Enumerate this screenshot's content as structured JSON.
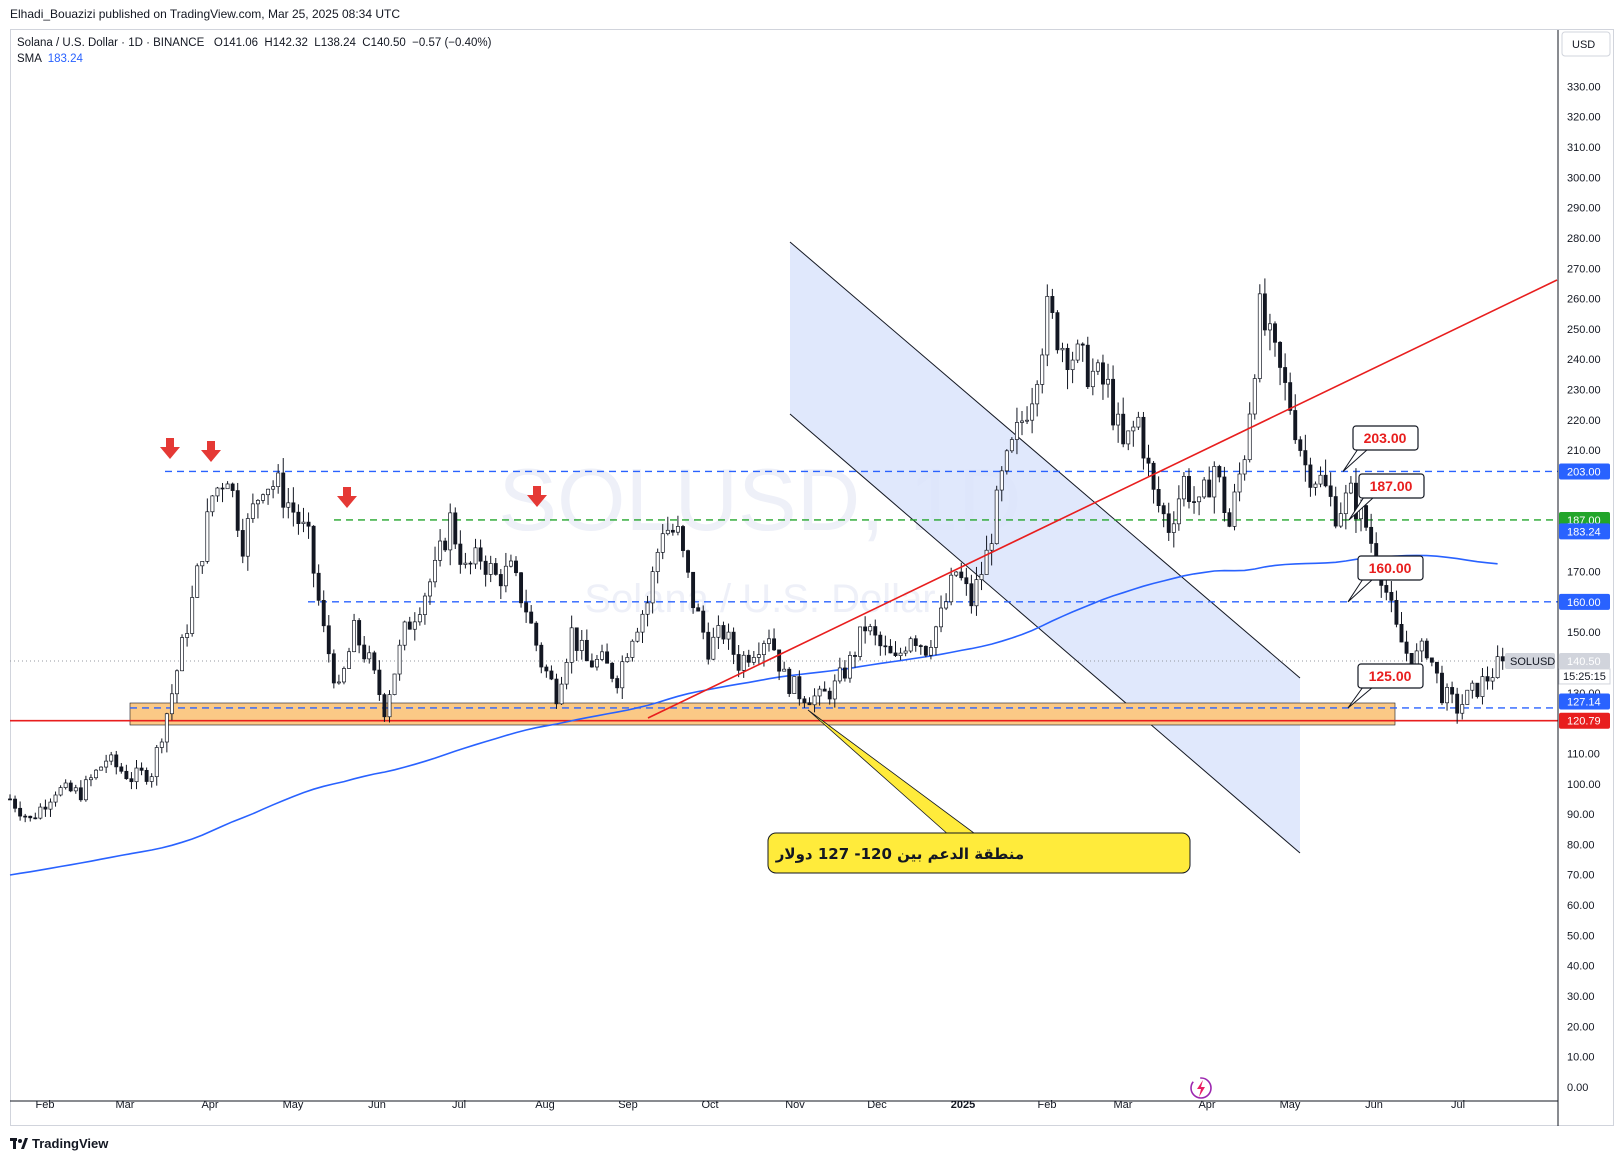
{
  "header": {
    "published": "Elhadi_Bouazizi published on TradingView.com, Mar 25, 2025 08:34 UTC"
  },
  "legend": {
    "symbol": "Solana / U.S. Dollar · 1D · BINANCE",
    "o_label": "O",
    "o": "141.06",
    "h_label": "H",
    "h": "142.32",
    "l_label": "L",
    "l": "138.24",
    "c_label": "C",
    "c": "140.50",
    "change": "−0.57 (−0.40%)",
    "sma_label": "SMA",
    "sma_value": "183.24"
  },
  "watermark": {
    "main": "SOLUSD, 1D",
    "sub": "Solana / U.S. Dollar"
  },
  "footer": {
    "brand": "TradingView"
  },
  "colors": {
    "up_candle": "#ffffff",
    "candle_border": "#131722",
    "sma": "#2962ff",
    "channel_fill": "#dbe4fb",
    "trendline": "#e81e1e",
    "support_zone": "#fbc986",
    "level_blue": "#2962ff",
    "level_green": "#22a52a",
    "callout_fill": "#ffeb3b",
    "arrow_red": "#e53935"
  },
  "chart_data": {
    "type": "candlestick",
    "symbol": "SOLUSD",
    "timeframe": "1D",
    "currency": "USD",
    "ylim": [
      0,
      340
    ],
    "y_ticks": [
      0,
      10,
      20,
      30,
      40,
      50,
      60,
      70,
      80,
      90,
      100,
      110,
      120,
      130,
      150,
      170,
      210,
      220,
      230,
      240,
      250,
      260,
      270,
      280,
      290,
      300,
      310,
      320,
      330
    ],
    "x_ticks": [
      "Feb",
      "Mar",
      "Apr",
      "May",
      "Jun",
      "Jul",
      "Aug",
      "Sep",
      "Oct",
      "Nov",
      "Dec",
      "2025",
      "Feb",
      "Mar",
      "Apr",
      "May",
      "Jun",
      "Jul"
    ],
    "price_path": [
      [
        0,
        95
      ],
      [
        4,
        88
      ],
      [
        9,
        98
      ],
      [
        14,
        97
      ],
      [
        19,
        108
      ],
      [
        24,
        102
      ],
      [
        28,
        104
      ],
      [
        32,
        130
      ],
      [
        36,
        160
      ],
      [
        40,
        195
      ],
      [
        43,
        203
      ],
      [
        46,
        180
      ],
      [
        50,
        200
      ],
      [
        53,
        198
      ],
      [
        56,
        190
      ],
      [
        59,
        180
      ],
      [
        62,
        150
      ],
      [
        65,
        130
      ],
      [
        68,
        150
      ],
      [
        71,
        140
      ],
      [
        74,
        125
      ],
      [
        78,
        150
      ],
      [
        81,
        160
      ],
      [
        84,
        170
      ],
      [
        87,
        187
      ],
      [
        90,
        170
      ],
      [
        93,
        175
      ],
      [
        96,
        168
      ],
      [
        99,
        170
      ],
      [
        102,
        158
      ],
      [
        105,
        140
      ],
      [
        108,
        130
      ],
      [
        111,
        150
      ],
      [
        114,
        140
      ],
      [
        117,
        140
      ],
      [
        120,
        135
      ],
      [
        123,
        150
      ],
      [
        126,
        160
      ],
      [
        129,
        185
      ],
      [
        132,
        182
      ],
      [
        135,
        160
      ],
      [
        138,
        145
      ],
      [
        141,
        150
      ],
      [
        144,
        140
      ],
      [
        147,
        145
      ],
      [
        150,
        150
      ],
      [
        153,
        135
      ],
      [
        156,
        130
      ],
      [
        160,
        128
      ],
      [
        163,
        132
      ],
      [
        166,
        140
      ],
      [
        169,
        152
      ],
      [
        172,
        145
      ],
      [
        175,
        140
      ],
      [
        178,
        150
      ],
      [
        181,
        145
      ],
      [
        184,
        155
      ],
      [
        187,
        170
      ],
      [
        190,
        160
      ],
      [
        193,
        175
      ],
      [
        196,
        200
      ],
      [
        199,
        215
      ],
      [
        202,
        230
      ],
      [
        205,
        255
      ],
      [
        208,
        245
      ],
      [
        211,
        240
      ],
      [
        214,
        235
      ],
      [
        217,
        230
      ],
      [
        220,
        210
      ],
      [
        223,
        220
      ],
      [
        226,
        195
      ],
      [
        229,
        185
      ],
      [
        232,
        200
      ],
      [
        235,
        190
      ],
      [
        238,
        205
      ],
      [
        241,
        185
      ],
      [
        244,
        210
      ],
      [
        247,
        255
      ],
      [
        250,
        240
      ],
      [
        253,
        225
      ],
      [
        256,
        205
      ],
      [
        259,
        200
      ],
      [
        262,
        190
      ],
      [
        265,
        195
      ],
      [
        268,
        185
      ],
      [
        271,
        170
      ],
      [
        274,
        150
      ],
      [
        277,
        140
      ],
      [
        280,
        145
      ],
      [
        283,
        130
      ],
      [
        286,
        125
      ],
      [
        289,
        130
      ],
      [
        292,
        135
      ],
      [
        295,
        140.5
      ]
    ],
    "sma": {
      "name": "SMA",
      "value": 183.24
    },
    "levels": [
      {
        "label": "203.00",
        "value": 203.0,
        "style": "dashed-blue"
      },
      {
        "label": "187.00",
        "value": 187.0,
        "style": "dashed-green"
      },
      {
        "label": "160.00",
        "value": 160.0,
        "style": "dashed-blue"
      },
      {
        "label": "125.00",
        "value": 125.0,
        "style": "dashed-blue"
      }
    ],
    "price_tags": [
      {
        "label": "203.00",
        "value": 203.0,
        "color": "#2962ff"
      },
      {
        "label": "187.00",
        "value": 187.0,
        "color": "#22a52a"
      },
      {
        "label": "183.24",
        "value": 183.24,
        "color": "#2962ff"
      },
      {
        "label": "160.00",
        "value": 160.0,
        "color": "#2962ff"
      },
      {
        "label": "140.50",
        "value": 140.5,
        "color": "#d1d4dc"
      },
      {
        "label": "127.14",
        "value": 127.14,
        "color": "#2962ff"
      },
      {
        "label": "120.79",
        "value": 120.79,
        "color": "#e81e1e"
      }
    ],
    "current_tag": {
      "symbol": "SOLUSD",
      "price": "140.50",
      "countdown": "15:25:15"
    },
    "support_zone": [
      120.79,
      127.14
    ],
    "annotation": "منطقة الدعم بين 120- 127 دولار",
    "callouts": [
      "203.00",
      "187.00",
      "160.00",
      "125.00"
    ]
  }
}
